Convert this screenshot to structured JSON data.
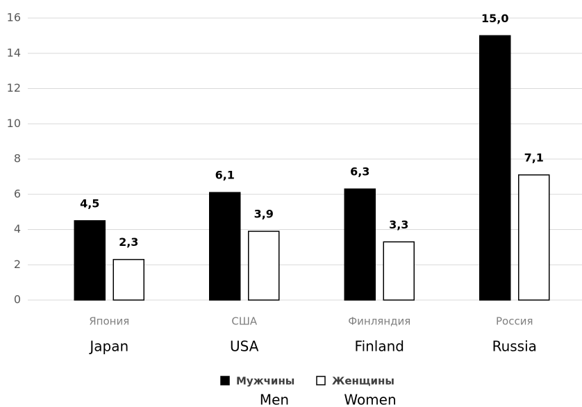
{
  "chart_data": {
    "type": "bar",
    "categories": [
      "Япония",
      "США",
      "Финляндия",
      "Россия"
    ],
    "category_translations": [
      "Japan",
      "USA",
      "Finland",
      "Russia"
    ],
    "series": [
      {
        "name": "Мужчины",
        "name_translation": "Men",
        "color": "#000000",
        "values": [
          4.5,
          6.1,
          6.3,
          15.0
        ],
        "value_labels": [
          "4,5",
          "6,1",
          "6,3",
          "15,0"
        ]
      },
      {
        "name": "Женщины",
        "name_translation": "Women",
        "color": "#ffffff",
        "values": [
          2.3,
          3.9,
          3.3,
          7.1
        ],
        "value_labels": [
          "2,3",
          "3,9",
          "3,3",
          "7,1"
        ]
      }
    ],
    "ylim": [
      0,
      16
    ],
    "yticks": [
      0,
      2,
      4,
      6,
      8,
      10,
      12,
      14,
      16
    ],
    "grid": true,
    "legend": "bottom"
  }
}
